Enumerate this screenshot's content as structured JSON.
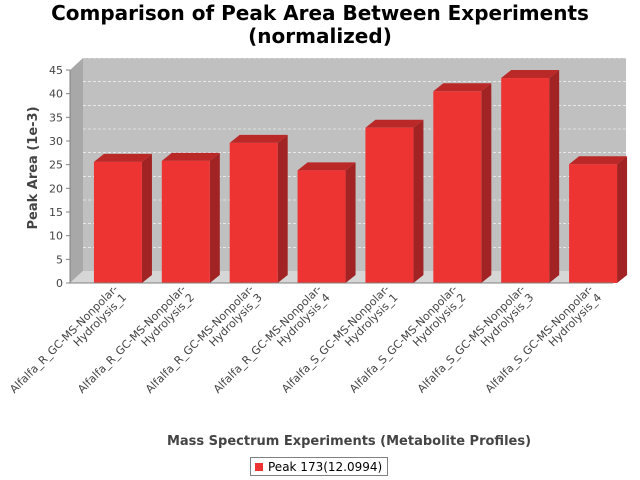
{
  "chart_data": {
    "type": "bar",
    "title_lines": [
      "Comparison of Peak Area Between Experiments",
      "(normalized)"
    ],
    "xlabel": "Mass Spectrum Experiments (Metabolite Profiles)",
    "ylabel": "Peak Area (1e-3)",
    "ylim": [
      0,
      45
    ],
    "yticks": [
      0,
      5,
      10,
      15,
      20,
      25,
      30,
      35,
      40,
      45
    ],
    "grid": true,
    "legend_position": "bottom",
    "categories": [
      [
        "Alfalfa_R_GC-MS-Nonpolar-",
        "Hydrolysis_1"
      ],
      [
        "Alfalfa_R_GC-MS-Nonpolar-",
        "Hydrolysis_2"
      ],
      [
        "Alfalfa_R_GC-MS-Nonpolar-",
        "Hydrolysis_3"
      ],
      [
        "Alfalfa_R_GC-MS-Nonpolar-",
        "Hydrolysis_4"
      ],
      [
        "Alfalfa_S_GC-MS-Nonpolar-",
        "Hydrolysis_1"
      ],
      [
        "Alfalfa_S_GC-MS-Nonpolar-",
        "Hydrolysis_2"
      ],
      [
        "Alfalfa_S_GC-MS-Nonpolar-",
        "Hydrolysis_3"
      ],
      [
        "Alfalfa_S_GC-MS-Nonpolar-",
        "Hydrolysis_4"
      ]
    ],
    "series": [
      {
        "name": "Peak 173(12.0994)",
        "color": "#ee3333",
        "values": [
          25.6,
          25.8,
          29.6,
          23.8,
          32.8,
          40.5,
          43.3,
          25.1
        ]
      }
    ]
  }
}
